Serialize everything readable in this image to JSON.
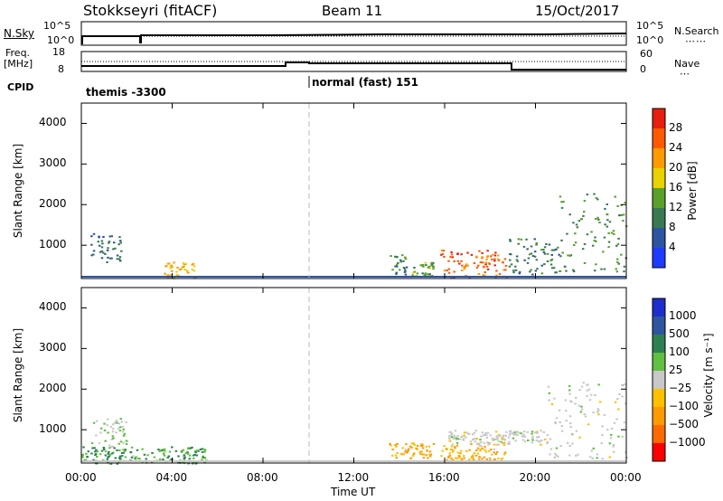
{
  "header": {
    "station": "Stokkseyri (fitACF)",
    "beam": "Beam 11",
    "date": "15/Oct/2017"
  },
  "noise_panel": {
    "left_label": "N.Sky",
    "left_ticks": [
      "10^5",
      "10^0"
    ],
    "right_ticks": [
      "10^5",
      "10^0"
    ],
    "right_label": "N.Search"
  },
  "freq_panel": {
    "left_label_1": "Freq.",
    "left_label_2": "[MHz]",
    "left_ticks": [
      "18",
      "8"
    ],
    "right_ticks": [
      "60",
      "0"
    ],
    "right_label": "Nave"
  },
  "cpid": {
    "label": "CPID",
    "segments": [
      {
        "name": "themis -3300",
        "start_h": 0,
        "end_h": 10
      },
      {
        "name": "normal (fast) 151",
        "start_h": 10,
        "end_h": 24
      }
    ]
  },
  "colors": {
    "power": [
      "#1e3cff",
      "#2e55a0",
      "#3a7a50",
      "#5aa02a",
      "#e8d200",
      "#ff9a00",
      "#ff5a00",
      "#e81e10"
    ],
    "velocity": [
      "#ff0000",
      "#ff6a00",
      "#ff9a00",
      "#ffc000",
      "#c8c8c8",
      "#60c040",
      "#2e8050",
      "#2e55a0",
      "#1e2ecc"
    ]
  },
  "chart_data": [
    {
      "type": "heatmap",
      "name": "power",
      "ylabel": "Slant Range [km]",
      "xlabel": "Time UT",
      "xlim": [
        0,
        24
      ],
      "ylim": [
        180,
        4500
      ],
      "x_ticks": [
        "00:00",
        "04:00",
        "08:00",
        "12:00",
        "16:00",
        "20:00",
        "00:00"
      ],
      "y_ticks": [
        1000,
        2000,
        3000,
        4000
      ],
      "colorbar": {
        "label": "Power [dB]",
        "ticks": [
          4,
          8,
          12,
          16,
          20,
          24,
          28
        ],
        "range": [
          0,
          32
        ]
      },
      "features": [
        {
          "t0": 0.4,
          "t1": 1.8,
          "r0": 600,
          "r1": 1300,
          "value": 8
        },
        {
          "t0": 3.6,
          "t1": 5.0,
          "r0": 200,
          "r1": 600,
          "value": 20
        },
        {
          "t0": 13.5,
          "t1": 14.3,
          "r0": 300,
          "r1": 800,
          "value": 10
        },
        {
          "t0": 14.5,
          "t1": 15.5,
          "r0": 250,
          "r1": 600,
          "value": 14
        },
        {
          "t0": 15.8,
          "t1": 18.7,
          "r0": 200,
          "r1": 900,
          "value": 26
        },
        {
          "t0": 18.8,
          "t1": 21.0,
          "r0": 300,
          "r1": 1200,
          "value": 10
        },
        {
          "t0": 21.0,
          "t1": 24.0,
          "r0": 300,
          "r1": 2300,
          "value": 12
        }
      ]
    },
    {
      "type": "heatmap",
      "name": "velocity",
      "ylabel": "Slant Range [km]",
      "xlabel": "Time UT",
      "xlim": [
        0,
        24
      ],
      "ylim": [
        180,
        4500
      ],
      "x_ticks": [
        "00:00",
        "04:00",
        "08:00",
        "12:00",
        "16:00",
        "20:00",
        "00:00"
      ],
      "y_ticks": [
        1000,
        2000,
        3000,
        4000
      ],
      "colorbar": {
        "label": "Velocity [m s⁻¹]",
        "ticks": [
          "1000",
          "500",
          "100",
          "25",
          "−25",
          "−100",
          "−500",
          "−1000"
        ]
      },
      "features": [
        {
          "t0": 0.4,
          "t1": 2.0,
          "r0": 600,
          "r1": 1300,
          "value": 25
        },
        {
          "t0": 0.0,
          "t1": 5.5,
          "r0": 180,
          "r1": 600,
          "value": 100
        },
        {
          "t0": 13.5,
          "t1": 15.5,
          "r0": 300,
          "r1": 700,
          "value": -100
        },
        {
          "t0": 15.8,
          "t1": 18.7,
          "r0": 250,
          "r1": 700,
          "value": -100
        },
        {
          "t0": 16.0,
          "t1": 20.5,
          "r0": 650,
          "r1": 1000,
          "value": 0
        },
        {
          "t0": 20.5,
          "t1": 24.0,
          "r0": 300,
          "r1": 2200,
          "value": 0
        }
      ]
    }
  ]
}
